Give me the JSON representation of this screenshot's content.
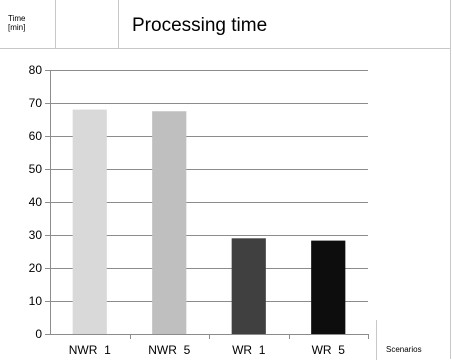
{
  "chart_data": {
    "type": "bar",
    "title": "Processing time",
    "ylabel": "Time [min]",
    "ylabel_lines": [
      "Time",
      "[min]"
    ],
    "xlabel": "Scenarios",
    "categories": [
      "NWR  1",
      "NWR  5",
      "WR  1",
      "WR  5"
    ],
    "values": [
      68,
      67.5,
      29,
      28.3
    ],
    "colors": [
      "#d9d9d9",
      "#bfbfbf",
      "#404040",
      "#0d0d0d"
    ],
    "ylim": [
      0,
      80
    ],
    "yticks": [
      0,
      10,
      20,
      30,
      40,
      50,
      60,
      70,
      80
    ],
    "grid": true,
    "legend": "none"
  }
}
